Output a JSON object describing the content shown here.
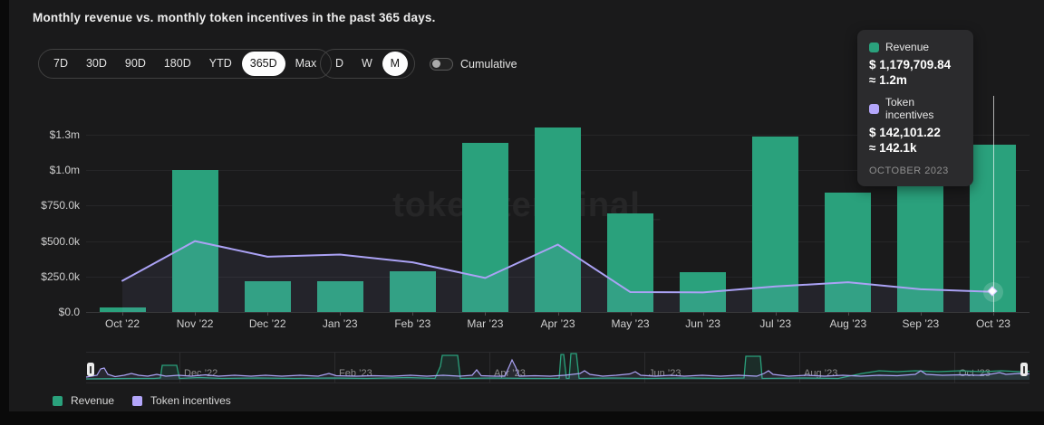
{
  "title": "Monthly revenue vs. monthly token incentives in the past 365 days.",
  "toolbar": {
    "range_options": [
      "7D",
      "30D",
      "90D",
      "180D",
      "YTD",
      "365D",
      "Max"
    ],
    "range_selected": "365D",
    "granularity_options": [
      "D",
      "W",
      "M"
    ],
    "granularity_selected": "M",
    "cumulative_label": "Cumulative",
    "cumulative_on": false
  },
  "tooltip": {
    "revenue_label": "Revenue",
    "revenue_value": "$ 1,179,709.84",
    "revenue_approx": "≈ 1.2m",
    "incentives_label": "Token incentives",
    "incentives_value": "$ 142,101.22",
    "incentives_approx": "≈ 142.1k",
    "period": "OCTOBER 2023"
  },
  "watermark": "token terminal_",
  "colors": {
    "revenue": "#2aa17c",
    "incentives": "#aba2f5",
    "incentives_fill": "rgba(171,162,245,0.08)"
  },
  "legend": [
    {
      "label": "Revenue",
      "color": "#2aa17c"
    },
    {
      "label": "Token incentives",
      "color": "#b3a6fa"
    }
  ],
  "chart_data": {
    "type": "bar",
    "title": "Monthly revenue vs. monthly token incentives in the past 365 days.",
    "categories": [
      "Oct ’22",
      "Nov ’22",
      "Dec ’22",
      "Jan ’23",
      "Feb ’23",
      "Mar ’23",
      "Apr ’23",
      "May ’23",
      "Jun ’23",
      "Jul ’23",
      "Aug ’23",
      "Sep ’23",
      "Oct ’23"
    ],
    "series": [
      {
        "name": "Revenue",
        "type": "bar",
        "color": "#2aa17c",
        "values": [
          35000,
          1000000,
          220000,
          215000,
          290000,
          1190000,
          1300000,
          695000,
          280000,
          1240000,
          840000,
          930000,
          1179709.84
        ]
      },
      {
        "name": "Token incentives",
        "type": "line",
        "color": "#aba2f5",
        "values": [
          220000,
          500000,
          390000,
          405000,
          350000,
          240000,
          475000,
          140000,
          138000,
          180000,
          210000,
          160000,
          142101.22
        ]
      }
    ],
    "ytick_labels": [
      "$0.0",
      "$250.0k",
      "$500.0k",
      "$750.0k",
      "$1.0m",
      "$1.3m"
    ],
    "ytick_values": [
      0,
      250000,
      500000,
      750000,
      1000000,
      1250000
    ],
    "ylim": [
      0,
      1250000
    ],
    "grid": "horizontal",
    "legend_position": "bottom-left",
    "highlight_index": 12,
    "highlight_period": "OCTOBER 2023"
  },
  "minimap": {
    "labels": [
      "Dec ’22",
      "Feb ’23",
      "Apr ’23",
      "Jun ’23",
      "Aug ’23",
      "Oct ’23"
    ],
    "revenue_points": [
      [
        0,
        30
      ],
      [
        50,
        29.5
      ],
      [
        75,
        29.5
      ],
      [
        82,
        29
      ],
      [
        84,
        15
      ],
      [
        100,
        15
      ],
      [
        103,
        29.5
      ],
      [
        125,
        28.5
      ],
      [
        150,
        29.5
      ],
      [
        190,
        29
      ],
      [
        230,
        29.5
      ],
      [
        270,
        29
      ],
      [
        310,
        29.5
      ],
      [
        355,
        28.5
      ],
      [
        385,
        29.5
      ],
      [
        391,
        16
      ],
      [
        393,
        4
      ],
      [
        410,
        4
      ],
      [
        413,
        29.5
      ],
      [
        450,
        29
      ],
      [
        490,
        29.5
      ],
      [
        522,
        29.5
      ],
      [
        524,
        3
      ],
      [
        527,
        3
      ],
      [
        530,
        29.5
      ],
      [
        533,
        29.5
      ],
      [
        535,
        2
      ],
      [
        541,
        2
      ],
      [
        544,
        29.5
      ],
      [
        580,
        29
      ],
      [
        620,
        29.5
      ],
      [
        660,
        29
      ],
      [
        700,
        29.5
      ],
      [
        726,
        29
      ],
      [
        728,
        5
      ],
      [
        744,
        5
      ],
      [
        746,
        29.5
      ],
      [
        790,
        29
      ],
      [
        830,
        29.5
      ],
      [
        856,
        24
      ],
      [
        875,
        21
      ],
      [
        895,
        22
      ],
      [
        915,
        21
      ],
      [
        940,
        22
      ],
      [
        965,
        21
      ],
      [
        990,
        22
      ],
      [
        1010,
        21
      ],
      [
        1030,
        22
      ],
      [
        1041,
        21.5
      ]
    ],
    "incentives_points": [
      [
        0,
        28
      ],
      [
        12,
        26
      ],
      [
        16,
        19
      ],
      [
        20,
        18
      ],
      [
        24,
        25
      ],
      [
        32,
        27.5
      ],
      [
        42,
        26
      ],
      [
        50,
        24
      ],
      [
        58,
        26
      ],
      [
        68,
        27
      ],
      [
        78,
        25
      ],
      [
        88,
        27
      ],
      [
        102,
        26
      ],
      [
        116,
        27
      ],
      [
        132,
        25.5
      ],
      [
        146,
        27
      ],
      [
        164,
        26
      ],
      [
        182,
        27
      ],
      [
        198,
        26
      ],
      [
        216,
        27
      ],
      [
        236,
        26
      ],
      [
        256,
        27
      ],
      [
        268,
        24
      ],
      [
        276,
        26.5
      ],
      [
        298,
        27
      ],
      [
        318,
        26.5
      ],
      [
        338,
        27
      ],
      [
        358,
        26
      ],
      [
        376,
        27
      ],
      [
        394,
        26
      ],
      [
        412,
        27
      ],
      [
        426,
        26
      ],
      [
        431,
        20
      ],
      [
        436,
        26.5
      ],
      [
        452,
        27
      ],
      [
        462,
        27
      ],
      [
        467,
        16
      ],
      [
        470,
        9
      ],
      [
        474,
        17
      ],
      [
        478,
        27
      ],
      [
        495,
        26.5
      ],
      [
        512,
        27
      ],
      [
        528,
        26
      ],
      [
        545,
        24
      ],
      [
        550,
        21
      ],
      [
        556,
        25
      ],
      [
        570,
        27
      ],
      [
        585,
        26
      ],
      [
        600,
        24.5
      ],
      [
        606,
        22
      ],
      [
        612,
        26
      ],
      [
        628,
        27
      ],
      [
        645,
        26
      ],
      [
        660,
        27
      ],
      [
        680,
        26
      ],
      [
        700,
        27
      ],
      [
        720,
        26
      ],
      [
        740,
        27
      ],
      [
        748,
        24
      ],
      [
        753,
        21
      ],
      [
        758,
        25
      ],
      [
        775,
        27
      ],
      [
        795,
        26
      ],
      [
        815,
        27
      ],
      [
        835,
        26
      ],
      [
        855,
        27
      ],
      [
        875,
        26
      ],
      [
        895,
        26.5
      ],
      [
        915,
        25
      ],
      [
        921,
        21
      ],
      [
        927,
        25
      ],
      [
        945,
        26
      ],
      [
        965,
        25.5
      ],
      [
        985,
        26
      ],
      [
        1000,
        24.5
      ],
      [
        1008,
        23
      ],
      [
        1015,
        25
      ],
      [
        1030,
        24
      ],
      [
        1041,
        24.5
      ]
    ]
  }
}
